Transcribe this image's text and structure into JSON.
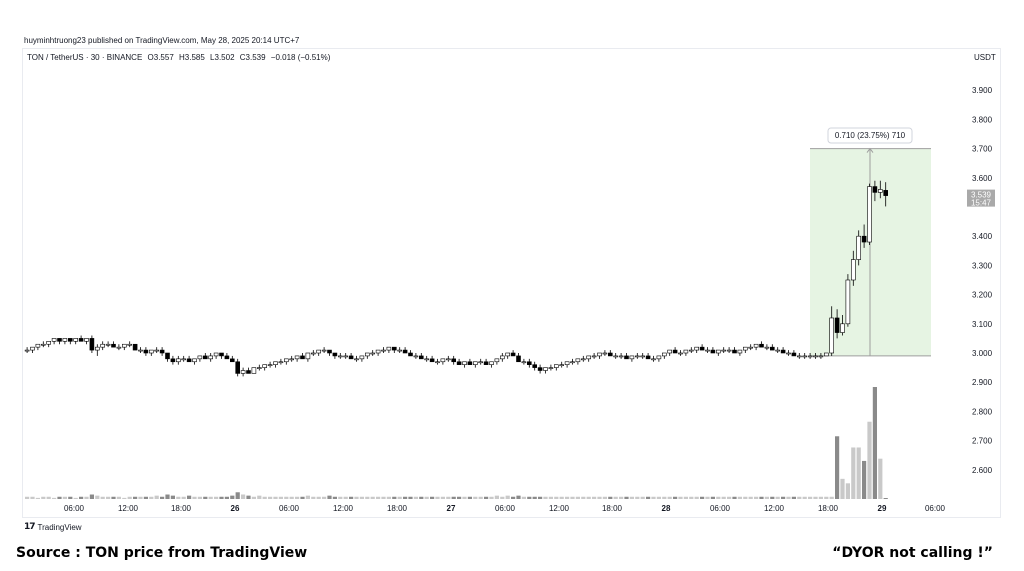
{
  "publisher_line": "huyminhtruong23 published on TradingView.com, May 28, 2025 20:14 UTC+7",
  "legend": {
    "symbol": "TON / TetherUS · 30 · BINANCE",
    "open": "O3.557",
    "high": "H3.585",
    "low": "L3.502",
    "close": "C3.539",
    "change": "−0.018 (−0.51%)"
  },
  "price_axis_unit": "USDT",
  "tradingview_logo": "TradingView",
  "caption_left": "Source : TON price from TradingView",
  "caption_right": "“DYOR  not calling !”",
  "colors": {
    "up_candle": "#ffffff",
    "down_candle": "#000000",
    "measure_fill": "#e6f4e3",
    "measure_border": "#9e9e9e",
    "price_label_bg": "#a9a9a9",
    "volume_up": "#c9c9c9",
    "volume_down": "#8a8a8a"
  },
  "chart_data": {
    "type": "candlestick",
    "interval": "30",
    "y_ticks": [
      "3.900",
      "3.800",
      "3.700",
      "3.600",
      "3.400",
      "3.300",
      "3.200",
      "3.100",
      "3.000",
      "2.900",
      "2.800",
      "2.700",
      "2.600"
    ],
    "ylim": [
      2.5,
      4.0
    ],
    "x_ticks": [
      "06:00",
      "12:00",
      "18:00",
      "26",
      "06:00",
      "12:00",
      "18:00",
      "27",
      "06:00",
      "12:00",
      "18:00",
      "28",
      "06:00",
      "12:00",
      "18:00",
      "29",
      "06:00"
    ],
    "last_price": "3.539",
    "countdown": "15:47",
    "measure": {
      "label": "0.710 (23.75%) 710",
      "from": 2.99,
      "to": 3.7
    },
    "ohlc_30m": [
      [
        3.01,
        3.02,
        3.0,
        3.01
      ],
      [
        3.01,
        3.02,
        3.0,
        3.02
      ],
      [
        3.02,
        3.03,
        3.01,
        3.03
      ],
      [
        3.03,
        3.04,
        3.02,
        3.03
      ],
      [
        3.03,
        3.04,
        3.02,
        3.04
      ],
      [
        3.04,
        3.05,
        3.03,
        3.05
      ],
      [
        3.05,
        3.05,
        3.03,
        3.04
      ],
      [
        3.04,
        3.05,
        3.03,
        3.05
      ],
      [
        3.05,
        3.05,
        3.03,
        3.04
      ],
      [
        3.04,
        3.05,
        3.03,
        3.05
      ],
      [
        3.05,
        3.06,
        3.04,
        3.04
      ],
      [
        3.04,
        3.05,
        3.03,
        3.05
      ],
      [
        3.05,
        3.06,
        3.0,
        3.01
      ],
      [
        3.01,
        3.03,
        2.99,
        3.02
      ],
      [
        3.02,
        3.04,
        3.01,
        3.03
      ],
      [
        3.03,
        3.04,
        3.02,
        3.03
      ],
      [
        3.03,
        3.04,
        3.02,
        3.02
      ],
      [
        3.02,
        3.03,
        3.01,
        3.02
      ],
      [
        3.02,
        3.03,
        3.01,
        3.03
      ],
      [
        3.03,
        3.04,
        3.02,
        3.03
      ],
      [
        3.03,
        3.03,
        3.01,
        3.01
      ],
      [
        3.01,
        3.02,
        3.0,
        3.01
      ],
      [
        3.01,
        3.02,
        2.99,
        3.0
      ],
      [
        3.0,
        3.01,
        2.99,
        3.01
      ],
      [
        3.01,
        3.02,
        3.0,
        3.01
      ],
      [
        3.01,
        3.02,
        2.99,
        3.0
      ],
      [
        3.0,
        3.0,
        2.97,
        2.98
      ],
      [
        2.98,
        2.99,
        2.96,
        2.97
      ],
      [
        2.97,
        2.99,
        2.96,
        2.98
      ],
      [
        2.98,
        2.99,
        2.97,
        2.98
      ],
      [
        2.98,
        2.99,
        2.97,
        2.97
      ],
      [
        2.97,
        2.98,
        2.96,
        2.98
      ],
      [
        2.98,
        2.99,
        2.97,
        2.99
      ],
      [
        2.99,
        3.0,
        2.98,
        2.98
      ],
      [
        2.98,
        3.0,
        2.97,
        2.99
      ],
      [
        2.99,
        3.0,
        2.98,
        3.0
      ],
      [
        3.0,
        3.0,
        2.98,
        2.99
      ],
      [
        2.99,
        3.0,
        2.98,
        2.98
      ],
      [
        2.98,
        2.99,
        2.97,
        2.97
      ],
      [
        2.97,
        2.98,
        2.92,
        2.93
      ],
      [
        2.93,
        2.95,
        2.92,
        2.94
      ],
      [
        2.94,
        2.95,
        2.93,
        2.93
      ],
      [
        2.93,
        2.95,
        2.93,
        2.95
      ],
      [
        2.95,
        2.96,
        2.94,
        2.95
      ],
      [
        2.95,
        2.96,
        2.94,
        2.96
      ],
      [
        2.96,
        2.97,
        2.95,
        2.96
      ],
      [
        2.96,
        2.97,
        2.95,
        2.97
      ],
      [
        2.97,
        2.98,
        2.96,
        2.97
      ],
      [
        2.97,
        2.98,
        2.96,
        2.98
      ],
      [
        2.98,
        2.99,
        2.97,
        2.98
      ],
      [
        2.98,
        2.99,
        2.97,
        2.99
      ],
      [
        2.99,
        3.0,
        2.98,
        2.98
      ],
      [
        2.98,
        3.0,
        2.97,
        3.0
      ],
      [
        3.0,
        3.01,
        2.99,
        3.0
      ],
      [
        3.0,
        3.01,
        2.99,
        3.01
      ],
      [
        3.01,
        3.02,
        3.0,
        3.01
      ],
      [
        3.01,
        3.01,
        2.99,
        3.0
      ],
      [
        3.0,
        3.0,
        2.98,
        2.99
      ],
      [
        2.99,
        3.0,
        2.98,
        2.99
      ],
      [
        2.99,
        3.0,
        2.98,
        2.99
      ],
      [
        2.99,
        3.0,
        2.98,
        2.98
      ],
      [
        2.98,
        2.99,
        2.97,
        2.98
      ],
      [
        2.98,
        2.99,
        2.97,
        2.99
      ],
      [
        2.99,
        3.0,
        2.98,
        3.0
      ],
      [
        3.0,
        3.01,
        2.99,
        3.0
      ],
      [
        3.0,
        3.01,
        2.99,
        3.01
      ],
      [
        3.01,
        3.02,
        3.0,
        3.01
      ],
      [
        3.01,
        3.02,
        3.0,
        3.02
      ],
      [
        3.02,
        3.02,
        3.0,
        3.01
      ],
      [
        3.01,
        3.02,
        3.0,
        3.01
      ],
      [
        3.01,
        3.02,
        3.0,
        3.0
      ],
      [
        3.0,
        3.01,
        2.99,
        2.99
      ],
      [
        2.99,
        3.0,
        2.98,
        2.99
      ],
      [
        2.99,
        3.0,
        2.98,
        2.98
      ],
      [
        2.98,
        2.99,
        2.97,
        2.98
      ],
      [
        2.98,
        2.99,
        2.97,
        2.97
      ],
      [
        2.97,
        2.98,
        2.96,
        2.97
      ],
      [
        2.97,
        2.98,
        2.96,
        2.98
      ],
      [
        2.98,
        2.99,
        2.97,
        2.98
      ],
      [
        2.98,
        2.99,
        2.96,
        2.97
      ],
      [
        2.97,
        2.98,
        2.96,
        2.96
      ],
      [
        2.96,
        2.97,
        2.95,
        2.97
      ],
      [
        2.97,
        2.98,
        2.96,
        2.96
      ],
      [
        2.96,
        2.97,
        2.95,
        2.97
      ],
      [
        2.97,
        2.98,
        2.96,
        2.97
      ],
      [
        2.97,
        2.98,
        2.96,
        2.96
      ],
      [
        2.96,
        2.97,
        2.95,
        2.97
      ],
      [
        2.97,
        2.98,
        2.96,
        2.98
      ],
      [
        2.98,
        3.0,
        2.97,
        2.99
      ],
      [
        2.99,
        3.0,
        2.98,
        3.0
      ],
      [
        3.0,
        3.01,
        2.99,
        2.99
      ],
      [
        2.99,
        3.0,
        2.97,
        2.97
      ],
      [
        2.97,
        2.98,
        2.96,
        2.97
      ],
      [
        2.97,
        2.98,
        2.95,
        2.96
      ],
      [
        2.96,
        2.97,
        2.94,
        2.95
      ],
      [
        2.95,
        2.96,
        2.93,
        2.94
      ],
      [
        2.94,
        2.95,
        2.93,
        2.95
      ],
      [
        2.95,
        2.96,
        2.94,
        2.95
      ],
      [
        2.95,
        2.96,
        2.94,
        2.96
      ],
      [
        2.96,
        2.97,
        2.95,
        2.96
      ],
      [
        2.96,
        2.97,
        2.95,
        2.97
      ],
      [
        2.97,
        2.98,
        2.96,
        2.97
      ],
      [
        2.97,
        2.98,
        2.96,
        2.98
      ],
      [
        2.98,
        2.99,
        2.97,
        2.98
      ],
      [
        2.98,
        2.99,
        2.97,
        2.99
      ],
      [
        2.99,
        3.0,
        2.98,
        2.99
      ],
      [
        2.99,
        3.0,
        2.98,
        3.0
      ],
      [
        3.0,
        3.01,
        2.99,
        3.0
      ],
      [
        3.0,
        3.01,
        2.99,
        2.99
      ],
      [
        2.99,
        3.0,
        2.98,
        2.99
      ],
      [
        2.99,
        3.0,
        2.98,
        2.99
      ],
      [
        2.99,
        3.0,
        2.98,
        2.98
      ],
      [
        2.98,
        2.99,
        2.97,
        2.99
      ],
      [
        2.99,
        3.0,
        2.98,
        2.99
      ],
      [
        2.99,
        3.0,
        2.98,
        2.99
      ],
      [
        2.99,
        3.0,
        2.98,
        2.98
      ],
      [
        2.98,
        2.99,
        2.97,
        2.98
      ],
      [
        2.98,
        2.99,
        2.97,
        2.99
      ],
      [
        2.99,
        3.0,
        2.98,
        3.0
      ],
      [
        3.0,
        3.01,
        2.99,
        3.01
      ],
      [
        3.01,
        3.02,
        3.0,
        3.0
      ],
      [
        3.0,
        3.01,
        2.99,
        3.0
      ],
      [
        3.0,
        3.01,
        2.99,
        3.01
      ],
      [
        3.01,
        3.02,
        3.0,
        3.01
      ],
      [
        3.01,
        3.02,
        3.0,
        3.02
      ],
      [
        3.02,
        3.03,
        3.01,
        3.01
      ],
      [
        3.01,
        3.02,
        3.0,
        3.01
      ],
      [
        3.01,
        3.02,
        3.0,
        3.0
      ],
      [
        3.0,
        3.01,
        2.99,
        3.01
      ],
      [
        3.01,
        3.02,
        3.0,
        3.01
      ],
      [
        3.01,
        3.02,
        3.0,
        3.01
      ],
      [
        3.01,
        3.02,
        3.0,
        3.0
      ],
      [
        3.0,
        3.01,
        2.99,
        3.01
      ],
      [
        3.01,
        3.02,
        3.0,
        3.02
      ],
      [
        3.02,
        3.03,
        3.01,
        3.02
      ],
      [
        3.02,
        3.03,
        3.01,
        3.03
      ],
      [
        3.03,
        3.04,
        3.02,
        3.02
      ],
      [
        3.02,
        3.03,
        3.01,
        3.02
      ],
      [
        3.02,
        3.03,
        3.01,
        3.01
      ],
      [
        3.01,
        3.02,
        3.0,
        3.01
      ],
      [
        3.01,
        3.02,
        3.0,
        3.0
      ],
      [
        3.0,
        3.01,
        2.99,
        3.0
      ],
      [
        3.0,
        3.01,
        2.99,
        2.99
      ],
      [
        2.99,
        3.0,
        2.98,
        2.99
      ],
      [
        2.99,
        3.0,
        2.98,
        2.99
      ],
      [
        2.99,
        3.0,
        2.98,
        2.99
      ],
      [
        2.99,
        3.0,
        2.98,
        2.99
      ],
      [
        2.99,
        3.0,
        2.98,
        2.99
      ],
      [
        2.99,
        3.0,
        2.99,
        3.0
      ],
      [
        3.0,
        3.16,
        2.99,
        3.12
      ],
      [
        3.12,
        3.15,
        3.05,
        3.07
      ],
      [
        3.07,
        3.13,
        3.06,
        3.1
      ],
      [
        3.1,
        3.27,
        3.09,
        3.25
      ],
      [
        3.25,
        3.35,
        3.23,
        3.32
      ],
      [
        3.32,
        3.42,
        3.3,
        3.4
      ],
      [
        3.4,
        3.44,
        3.36,
        3.38
      ],
      [
        3.38,
        3.58,
        3.37,
        3.57
      ],
      [
        3.57,
        3.59,
        3.52,
        3.55
      ],
      [
        3.55,
        3.59,
        3.53,
        3.56
      ],
      [
        3.557,
        3.585,
        3.502,
        3.539
      ]
    ],
    "volume_relative": [
      0.02,
      0.02,
      0.01,
      0.02,
      0.02,
      0.01,
      0.02,
      0.02,
      0.02,
      0.01,
      0.02,
      0.02,
      0.04,
      0.03,
      0.02,
      0.02,
      0.02,
      0.02,
      0.01,
      0.02,
      0.02,
      0.02,
      0.02,
      0.02,
      0.03,
      0.02,
      0.04,
      0.03,
      0.02,
      0.02,
      0.03,
      0.02,
      0.02,
      0.02,
      0.02,
      0.02,
      0.02,
      0.02,
      0.03,
      0.06,
      0.04,
      0.03,
      0.02,
      0.03,
      0.02,
      0.02,
      0.02,
      0.02,
      0.02,
      0.02,
      0.02,
      0.02,
      0.03,
      0.02,
      0.02,
      0.02,
      0.03,
      0.02,
      0.02,
      0.02,
      0.02,
      0.02,
      0.02,
      0.02,
      0.02,
      0.02,
      0.02,
      0.02,
      0.02,
      0.02,
      0.02,
      0.02,
      0.02,
      0.02,
      0.02,
      0.02,
      0.02,
      0.02,
      0.02,
      0.02,
      0.02,
      0.02,
      0.02,
      0.02,
      0.02,
      0.02,
      0.02,
      0.03,
      0.02,
      0.03,
      0.02,
      0.03,
      0.02,
      0.02,
      0.02,
      0.02,
      0.02,
      0.02,
      0.02,
      0.02,
      0.02,
      0.02,
      0.02,
      0.02,
      0.02,
      0.02,
      0.02,
      0.02,
      0.02,
      0.02,
      0.02,
      0.02,
      0.02,
      0.02,
      0.02,
      0.02,
      0.02,
      0.02,
      0.02,
      0.02,
      0.02,
      0.02,
      0.02,
      0.02,
      0.02,
      0.02,
      0.02,
      0.02,
      0.02,
      0.02,
      0.02,
      0.02,
      0.02,
      0.02,
      0.02,
      0.02,
      0.02,
      0.02,
      0.02,
      0.02,
      0.02,
      0.02,
      0.02,
      0.02,
      0.02,
      0.02,
      0.02,
      0.02,
      0.02,
      0.02,
      0.56,
      0.18,
      0.14,
      0.46,
      0.46,
      0.34,
      0.69,
      1.0,
      0.36,
      0.0
    ]
  }
}
